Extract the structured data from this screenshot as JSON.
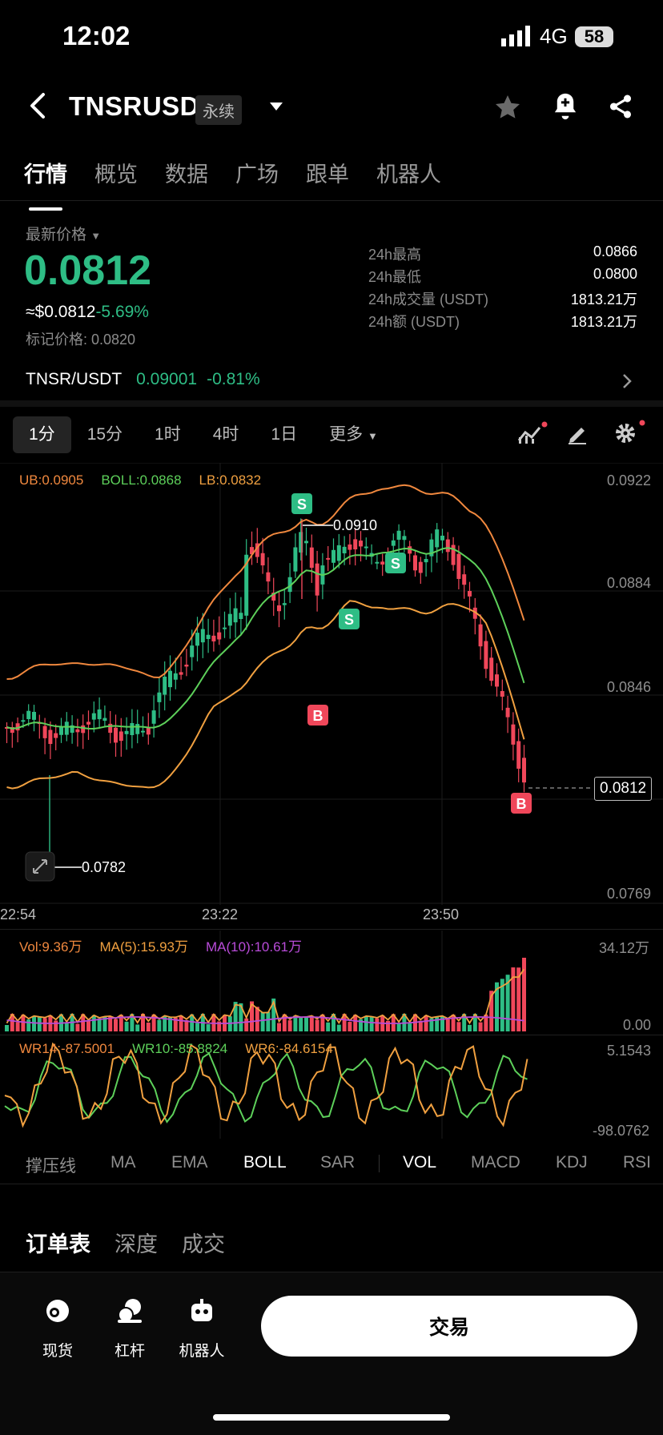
{
  "status_bar": {
    "time": "12:02",
    "network": "4G",
    "battery": "58"
  },
  "header": {
    "pair": "TNSRUSDT",
    "contract_tag": "永续"
  },
  "tabs": [
    "行情",
    "概览",
    "数据",
    "广场",
    "跟单",
    "机器人"
  ],
  "price_panel": {
    "last_price_label": "最新价格",
    "last_price": "0.0812",
    "usd_price": "≈$0.0812",
    "change_pct": "-5.69%",
    "mark_price": "标记价格: 0.0820",
    "stats": [
      {
        "label": "24h最高",
        "value": "0.0866"
      },
      {
        "label": "24h最低",
        "value": "0.0800"
      },
      {
        "label": "24h成交量 (USDT)",
        "value": "1813.21万"
      },
      {
        "label": "24h额 (USDT)",
        "value": "1813.21万"
      }
    ],
    "spot": {
      "pair": "TNSR/USDT",
      "price": "0.09001",
      "change": "-0.81%"
    }
  },
  "intervals": [
    "1分",
    "15分",
    "1时",
    "4时",
    "1日",
    "更多"
  ],
  "chart": {
    "boll_legend": {
      "ub": "UB:0.0905",
      "boll": "BOLL:0.0868",
      "lb": "LB:0.0832"
    },
    "price_axis": [
      "0.0922",
      "0.0884",
      "0.0846",
      "0.0812",
      "0.0769"
    ],
    "time_axis": [
      "22:54",
      "23:22",
      "23:50"
    ],
    "high_label": "0.0910",
    "low_label": "0.0782",
    "vol_legend": {
      "vol": "Vol:9.36万",
      "ma5": "MA(5):15.93万",
      "ma10": "MA(10):10.61万"
    },
    "vol_axis": [
      "34.12万",
      "0.00"
    ],
    "wr_legend": {
      "wr14": "WR14:-87.5001",
      "wr10": "WR10:-85.8824",
      "wr6": "WR6:-84.6154"
    },
    "wr_axis": [
      "5.1543",
      "-98.0762"
    ],
    "markers": [
      "S",
      "S",
      "S",
      "B",
      "B"
    ],
    "colors": {
      "up": "#2ebd85",
      "down": "#f0475a",
      "ub": "#f0883e",
      "boll": "#5dd05a",
      "lb": "#f0a040"
    }
  },
  "indicator_tabs": [
    "撑压线",
    "MA",
    "EMA",
    "BOLL",
    "SAR",
    "VOL",
    "MACD",
    "KDJ",
    "RSI"
  ],
  "order_tabs": [
    "订单表",
    "深度",
    "成交"
  ],
  "bottom_nav": {
    "spot": "现货",
    "margin": "杠杆",
    "bot": "机器人",
    "trade": "交易"
  }
}
